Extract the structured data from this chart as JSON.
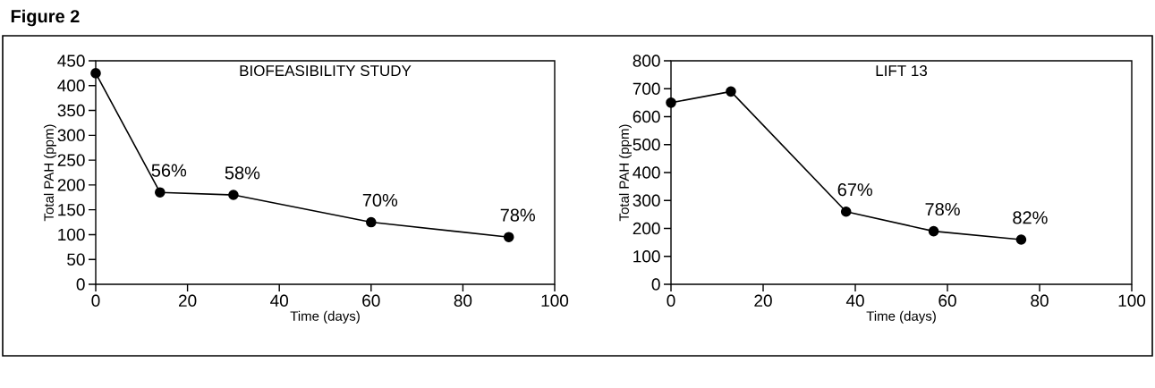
{
  "chart_data": [
    {
      "type": "line",
      "title": "BIOFEASIBILITY STUDY",
      "xlabel": "Time (days)",
      "ylabel": "Total PAH (ppm)",
      "x": [
        0,
        14,
        30,
        60,
        90
      ],
      "values": [
        425,
        185,
        180,
        125,
        95
      ],
      "color": "#000000",
      "marker": "circle",
      "line_style": "solid",
      "xlim": [
        0,
        100
      ],
      "xticks": [
        0,
        20,
        40,
        60,
        80,
        100
      ],
      "ylim": [
        0,
        450
      ],
      "yticks": [
        0,
        50,
        100,
        150,
        200,
        250,
        300,
        350,
        400,
        450
      ],
      "annotations": [
        "Figure 2",
        {
          "text": "56%",
          "x": 14,
          "y": 185
        },
        {
          "text": "58%",
          "x": 30,
          "y": 180
        },
        {
          "text": "70%",
          "x": 60,
          "y": 125
        },
        {
          "text": "78%",
          "x": 90,
          "y": 95
        }
      ]
    },
    {
      "type": "line",
      "title": "LIFT 13",
      "xlabel": "Time (days)",
      "ylabel": "Total PAH (ppm)",
      "x": [
        0,
        13,
        38,
        57,
        76
      ],
      "values": [
        650,
        690,
        260,
        190,
        160
      ],
      "color": "#000000",
      "marker": "circle",
      "line_style": "solid",
      "xlim": [
        0,
        100
      ],
      "xticks": [
        0,
        20,
        40,
        60,
        80,
        100
      ],
      "ylim": [
        0,
        800
      ],
      "yticks": [
        0,
        100,
        200,
        300,
        400,
        500,
        600,
        700,
        800
      ],
      "annotations": [
        {
          "text": "67%",
          "x": 38,
          "y": 260
        },
        {
          "text": "78%",
          "x": 57,
          "y": 190
        },
        {
          "text": "82%",
          "x": 76,
          "y": 160
        }
      ]
    }
  ]
}
